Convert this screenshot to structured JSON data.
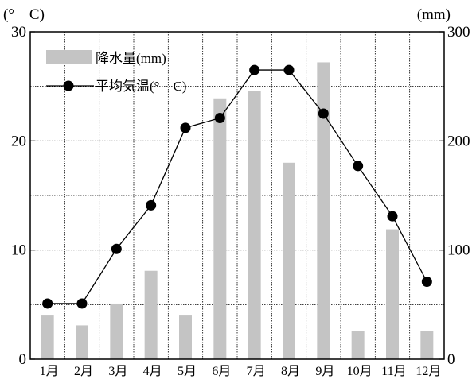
{
  "chart_data": {
    "type": "bar+line",
    "categories": [
      "1月",
      "2月",
      "3月",
      "4月",
      "5月",
      "6月",
      "7月",
      "8月",
      "9月",
      "10月",
      "11月",
      "12月"
    ],
    "series": [
      {
        "name": "降水量(mm)",
        "type": "bar",
        "axis": "right",
        "color": "#c4c4c4",
        "values": [
          40,
          31,
          51,
          81,
          40,
          239,
          246,
          180,
          272,
          26,
          119,
          26
        ]
      },
      {
        "name": "平均気温(°C)",
        "type": "line",
        "axis": "left",
        "color": "#000000",
        "values": [
          5.1,
          5.1,
          10.1,
          14.1,
          21.2,
          22.1,
          26.5,
          26.5,
          22.5,
          17.7,
          13.1,
          7.1
        ]
      }
    ],
    "left_axis": {
      "unit_label": "(°　C)",
      "range": [
        0,
        30
      ],
      "ticks": [
        0,
        10,
        20,
        30
      ]
    },
    "right_axis": {
      "unit_label": "(mm)",
      "range": [
        0,
        300
      ],
      "ticks": [
        0,
        100,
        200,
        300
      ]
    },
    "legend": {
      "position": "top-left",
      "items": [
        "降水量(mm)",
        "平均気温(°　C)"
      ]
    },
    "grid": true
  }
}
